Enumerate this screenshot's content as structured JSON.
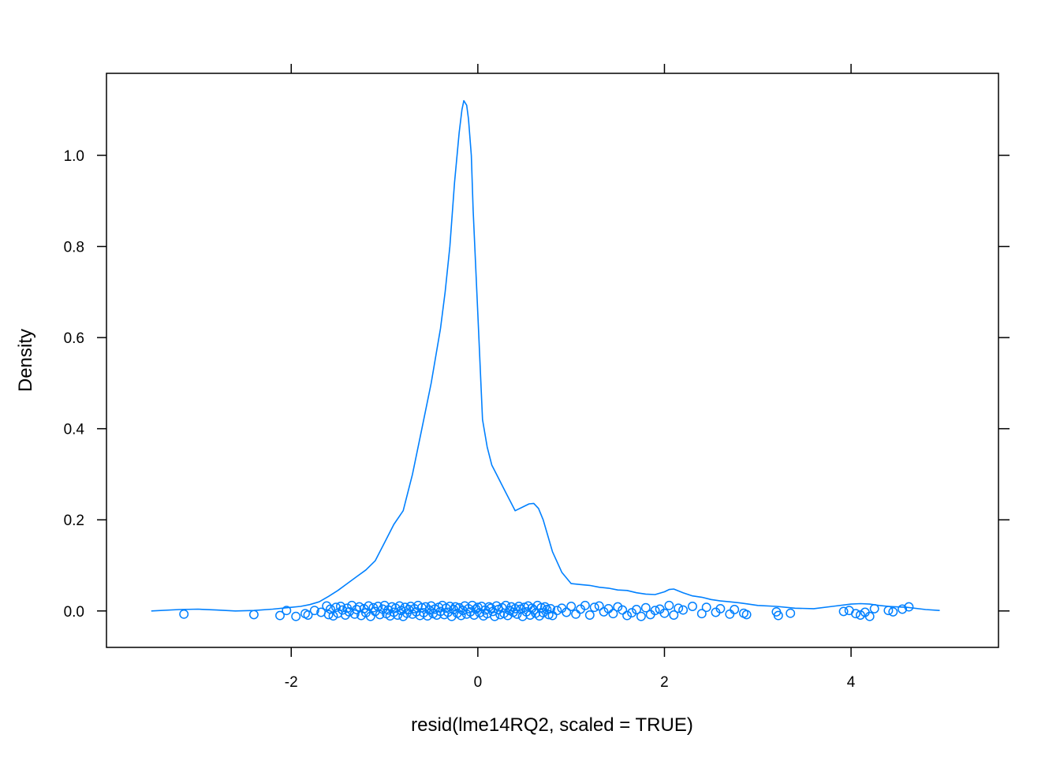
{
  "chart_data": {
    "type": "line",
    "title": "",
    "xlabel": "resid(lme14RQ2, scaled = TRUE)",
    "ylabel": "Density",
    "xlim": [
      -3.98,
      5.58
    ],
    "ylim": [
      -0.08,
      1.18
    ],
    "x_ticks": [
      {
        "value": -2,
        "label": "-2"
      },
      {
        "value": 0,
        "label": "0"
      },
      {
        "value": 2,
        "label": "2"
      },
      {
        "value": 4,
        "label": "4"
      }
    ],
    "y_ticks": [
      {
        "value": 0.0,
        "label": "0.0"
      },
      {
        "value": 0.2,
        "label": "0.2"
      },
      {
        "value": 0.4,
        "label": "0.4"
      },
      {
        "value": 0.6,
        "label": "0.6"
      },
      {
        "value": 0.8,
        "label": "0.8"
      },
      {
        "value": 1.0,
        "label": "1.0"
      }
    ],
    "grid": false,
    "series": [
      {
        "kind": "density",
        "color": "#0080ff",
        "x": [
          -3.5,
          -3.2,
          -3.0,
          -2.8,
          -2.6,
          -2.4,
          -2.2,
          -2.0,
          -1.9,
          -1.8,
          -1.7,
          -1.6,
          -1.5,
          -1.4,
          -1.3,
          -1.2,
          -1.1,
          -1.0,
          -0.9,
          -0.8,
          -0.7,
          -0.6,
          -0.5,
          -0.4,
          -0.35,
          -0.3,
          -0.25,
          -0.2,
          -0.17,
          -0.15,
          -0.12,
          -0.1,
          -0.07,
          -0.05,
          0.0,
          0.05,
          0.1,
          0.15,
          0.2,
          0.3,
          0.4,
          0.5,
          0.55,
          0.6,
          0.65,
          0.7,
          0.75,
          0.8,
          0.9,
          1.0,
          1.1,
          1.2,
          1.3,
          1.4,
          1.5,
          1.6,
          1.7,
          1.8,
          1.9,
          2.0,
          2.05,
          2.1,
          2.2,
          2.3,
          2.4,
          2.5,
          2.6,
          2.7,
          2.8,
          2.9,
          3.0,
          3.2,
          3.4,
          3.6,
          3.8,
          4.0,
          4.1,
          4.2,
          4.3,
          4.4,
          4.6,
          4.8,
          4.95
        ],
        "y": [
          0.0,
          0.003,
          0.004,
          0.002,
          0.0,
          0.001,
          0.004,
          0.008,
          0.01,
          0.014,
          0.02,
          0.032,
          0.045,
          0.06,
          0.075,
          0.09,
          0.11,
          0.15,
          0.19,
          0.22,
          0.3,
          0.4,
          0.5,
          0.62,
          0.7,
          0.8,
          0.94,
          1.05,
          1.1,
          1.12,
          1.11,
          1.08,
          1.0,
          0.88,
          0.65,
          0.42,
          0.36,
          0.32,
          0.3,
          0.26,
          0.22,
          0.23,
          0.235,
          0.236,
          0.225,
          0.2,
          0.165,
          0.13,
          0.085,
          0.06,
          0.058,
          0.056,
          0.052,
          0.05,
          0.046,
          0.045,
          0.04,
          0.037,
          0.036,
          0.042,
          0.047,
          0.048,
          0.04,
          0.033,
          0.03,
          0.025,
          0.022,
          0.02,
          0.018,
          0.015,
          0.012,
          0.01,
          0.006,
          0.005,
          0.01,
          0.015,
          0.016,
          0.015,
          0.012,
          0.01,
          0.008,
          0.003,
          0.001
        ]
      },
      {
        "kind": "points",
        "color": "#0080ff",
        "x": [
          -3.15,
          -2.4,
          -2.12,
          -2.05,
          -1.95,
          -1.85,
          -1.82,
          -1.75,
          -1.68,
          -1.62,
          -1.6,
          -1.58,
          -1.55,
          -1.52,
          -1.5,
          -1.47,
          -1.45,
          -1.42,
          -1.4,
          -1.38,
          -1.35,
          -1.32,
          -1.3,
          -1.27,
          -1.25,
          -1.22,
          -1.2,
          -1.17,
          -1.15,
          -1.12,
          -1.1,
          -1.07,
          -1.05,
          -1.02,
          -1.0,
          -0.98,
          -0.96,
          -0.94,
          -0.92,
          -0.9,
          -0.88,
          -0.86,
          -0.84,
          -0.82,
          -0.8,
          -0.78,
          -0.76,
          -0.74,
          -0.72,
          -0.7,
          -0.68,
          -0.66,
          -0.64,
          -0.62,
          -0.6,
          -0.58,
          -0.56,
          -0.54,
          -0.52,
          -0.5,
          -0.48,
          -0.46,
          -0.44,
          -0.42,
          -0.4,
          -0.38,
          -0.36,
          -0.34,
          -0.32,
          -0.3,
          -0.28,
          -0.26,
          -0.24,
          -0.22,
          -0.2,
          -0.18,
          -0.16,
          -0.14,
          -0.12,
          -0.1,
          -0.08,
          -0.06,
          -0.04,
          -0.02,
          0.0,
          0.02,
          0.04,
          0.06,
          0.08,
          0.1,
          0.12,
          0.14,
          0.16,
          0.18,
          0.2,
          0.22,
          0.24,
          0.26,
          0.28,
          0.3,
          0.32,
          0.34,
          0.36,
          0.38,
          0.4,
          0.42,
          0.44,
          0.46,
          0.48,
          0.5,
          0.52,
          0.54,
          0.56,
          0.58,
          0.6,
          0.62,
          0.64,
          0.66,
          0.68,
          0.7,
          0.72,
          0.74,
          0.76,
          0.78,
          0.8,
          0.85,
          0.9,
          0.95,
          1.0,
          1.05,
          1.1,
          1.15,
          1.2,
          1.25,
          1.3,
          1.35,
          1.4,
          1.45,
          1.5,
          1.55,
          1.6,
          1.65,
          1.7,
          1.75,
          1.8,
          1.85,
          1.9,
          1.95,
          2.0,
          2.05,
          2.1,
          2.15,
          2.2,
          2.3,
          2.4,
          2.45,
          2.55,
          2.6,
          2.7,
          2.75,
          2.85,
          2.88,
          3.2,
          3.22,
          3.35,
          3.92,
          3.98,
          4.05,
          4.1,
          4.15,
          4.2,
          4.25,
          4.4,
          4.45,
          4.55,
          4.62
        ],
        "y": [
          -0.007,
          -0.008,
          -0.01,
          0.001,
          -0.012,
          -0.006,
          -0.009,
          0.001,
          -0.003,
          0.011,
          -0.008,
          0.004,
          -0.011,
          0.008,
          -0.005,
          0.01,
          0.002,
          -0.009,
          0.006,
          -0.002,
          0.012,
          -0.007,
          0.003,
          0.009,
          -0.01,
          0.005,
          -0.004,
          0.011,
          -0.012,
          0.007,
          -0.001,
          0.01,
          -0.008,
          0.004,
          0.012,
          -0.006,
          0.002,
          -0.011,
          0.009,
          -0.003,
          0.006,
          -0.009,
          0.011,
          0.001,
          -0.012,
          0.008,
          -0.005,
          0.003,
          0.01,
          -0.007,
          0.005,
          -0.002,
          0.012,
          -0.01,
          0.007,
          -0.004,
          0.009,
          -0.011,
          0.002,
          0.011,
          -0.006,
          0.004,
          -0.009,
          0.008,
          -0.001,
          0.012,
          -0.008,
          0.006,
          -0.003,
          0.01,
          -0.012,
          0.003,
          0.009,
          -0.005,
          0.007,
          -0.01,
          0.001,
          0.011,
          -0.007,
          0.005,
          -0.002,
          0.012,
          -0.009,
          0.004,
          0.008,
          -0.004,
          0.01,
          -0.011,
          0.002,
          -0.006,
          0.009,
          0.006,
          -0.001,
          -0.012,
          0.011,
          0.003,
          -0.008,
          0.007,
          -0.005,
          0.012,
          -0.01,
          0.001,
          0.009,
          -0.003,
          0.005,
          -0.007,
          0.01,
          0.004,
          -0.012,
          0.008,
          -0.002,
          0.011,
          -0.009,
          0.006,
          0.002,
          -0.005,
          0.012,
          -0.011,
          0.007,
          -0.004,
          0.009,
          0.003,
          -0.008,
          0.005,
          -0.01,
          0.001,
          0.006,
          -0.003,
          0.01,
          -0.007,
          0.004,
          0.012,
          -0.009,
          0.008,
          0.011,
          -0.002,
          0.005,
          -0.006,
          0.009,
          0.002,
          -0.01,
          -0.004,
          0.003,
          -0.012,
          0.007,
          -0.008,
          0.001,
          0.004,
          -0.005,
          0.012,
          -0.009,
          0.006,
          0.002,
          0.01,
          -0.006,
          0.008,
          -0.003,
          0.005,
          -0.007,
          0.003,
          -0.005,
          -0.008,
          -0.002,
          -0.01,
          -0.005,
          -0.001,
          0.001,
          -0.006,
          -0.009,
          -0.003,
          -0.012,
          0.005,
          0.001,
          -0.002,
          0.004,
          0.009
        ],
        "marker": "open-circle"
      }
    ]
  }
}
